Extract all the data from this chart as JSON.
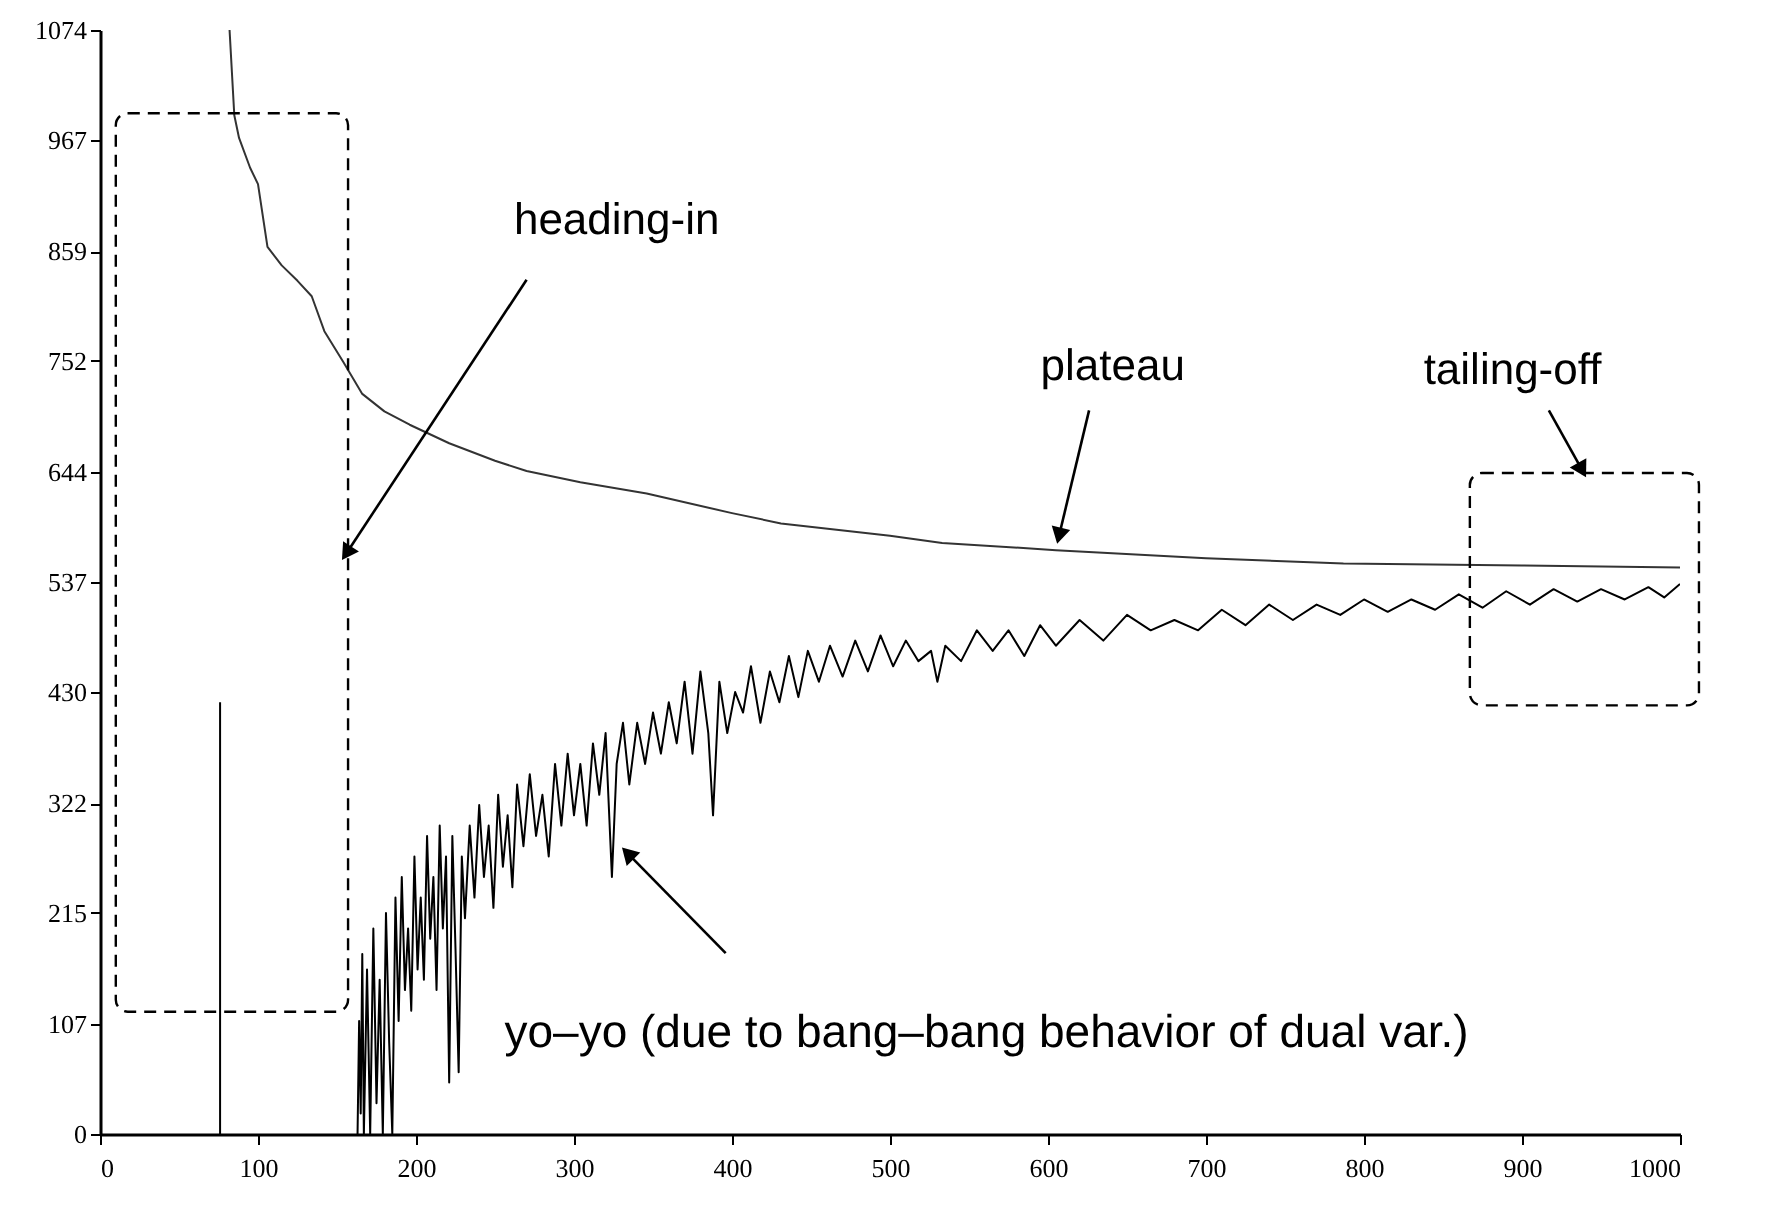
{
  "chart_data": {
    "type": "line",
    "xlim": [
      0,
      1000
    ],
    "ylim": [
      0,
      1074
    ],
    "xticks": [
      0,
      100,
      200,
      300,
      400,
      500,
      600,
      700,
      800,
      900,
      1000
    ],
    "yticks": [
      0,
      107,
      215,
      322,
      430,
      537,
      644,
      752,
      859,
      967,
      1074
    ],
    "grid": false,
    "marker": "none",
    "line_style": "solid",
    "series": [
      {
        "color": "#333333",
        "x": [
          82,
          85,
          88,
          95,
          100,
          106,
          115,
          125,
          134,
          142,
          154,
          166,
          180,
          196,
          221,
          250,
          270,
          304,
          346,
          400,
          431,
          500,
          533,
          605,
          700,
          787,
          900,
          1000
        ],
        "values": [
          1074,
          991,
          969,
          940,
          924,
          863,
          845,
          830,
          815,
          781,
          751,
          720,
          703,
          690,
          672,
          655,
          645,
          634,
          623,
          604,
          594,
          582,
          575,
          568,
          560,
          555,
          553,
          551
        ]
      },
      {
        "color": "#000000",
        "x": [
          163,
          164,
          165,
          166,
          167,
          169,
          171,
          173,
          175,
          177,
          179,
          181,
          183,
          185,
          187,
          189,
          191,
          193,
          195,
          197,
          199,
          201,
          203,
          205,
          207,
          209,
          211,
          213,
          215,
          217,
          219,
          221,
          223,
          225,
          227,
          229,
          231,
          234,
          237,
          240,
          243,
          246,
          249,
          252,
          255,
          258,
          261,
          264,
          268,
          272,
          276,
          280,
          284,
          288,
          292,
          296,
          300,
          304,
          308,
          312,
          316,
          320,
          324,
          327,
          331,
          335,
          340,
          345,
          350,
          355,
          360,
          365,
          370,
          375,
          380,
          385,
          388,
          392,
          397,
          402,
          407,
          412,
          418,
          424,
          430,
          436,
          442,
          448,
          455,
          462,
          470,
          478,
          486,
          494,
          502,
          510,
          518,
          526,
          530,
          535,
          545,
          555,
          565,
          575,
          585,
          595,
          605,
          620,
          635,
          650,
          665,
          680,
          695,
          710,
          725,
          740,
          755,
          770,
          785,
          800,
          815,
          830,
          845,
          860,
          875,
          890,
          905,
          920,
          935,
          950,
          965,
          980,
          990,
          1000
        ],
        "values": [
          0,
          110,
          20,
          175,
          0,
          160,
          0,
          200,
          30,
          150,
          0,
          215,
          90,
          0,
          230,
          110,
          250,
          140,
          200,
          120,
          270,
          160,
          230,
          150,
          290,
          190,
          250,
          140,
          300,
          200,
          270,
          50,
          290,
          180,
          60,
          270,
          210,
          300,
          230,
          320,
          250,
          300,
          220,
          330,
          260,
          310,
          240,
          340,
          280,
          350,
          290,
          330,
          270,
          360,
          300,
          370,
          310,
          360,
          300,
          380,
          330,
          390,
          250,
          360,
          400,
          340,
          400,
          360,
          410,
          370,
          420,
          380,
          440,
          370,
          450,
          390,
          310,
          440,
          390,
          430,
          410,
          455,
          400,
          450,
          420,
          465,
          425,
          470,
          440,
          475,
          445,
          480,
          450,
          485,
          455,
          480,
          460,
          470,
          440,
          475,
          460,
          490,
          470,
          490,
          465,
          495,
          475,
          500,
          480,
          505,
          490,
          500,
          490,
          510,
          495,
          515,
          500,
          515,
          505,
          520,
          508,
          520,
          510,
          525,
          512,
          528,
          515,
          530,
          518,
          530,
          520,
          532,
          522,
          535
        ]
      },
      {
        "color": "#000000",
        "x": [
          76,
          76
        ],
        "values": [
          0,
          420
        ]
      }
    ],
    "annotations": [
      "heading-in",
      "plateau",
      "tailing-off",
      "yo–yo (due to bang–bang behavior of dual var.)"
    ]
  }
}
